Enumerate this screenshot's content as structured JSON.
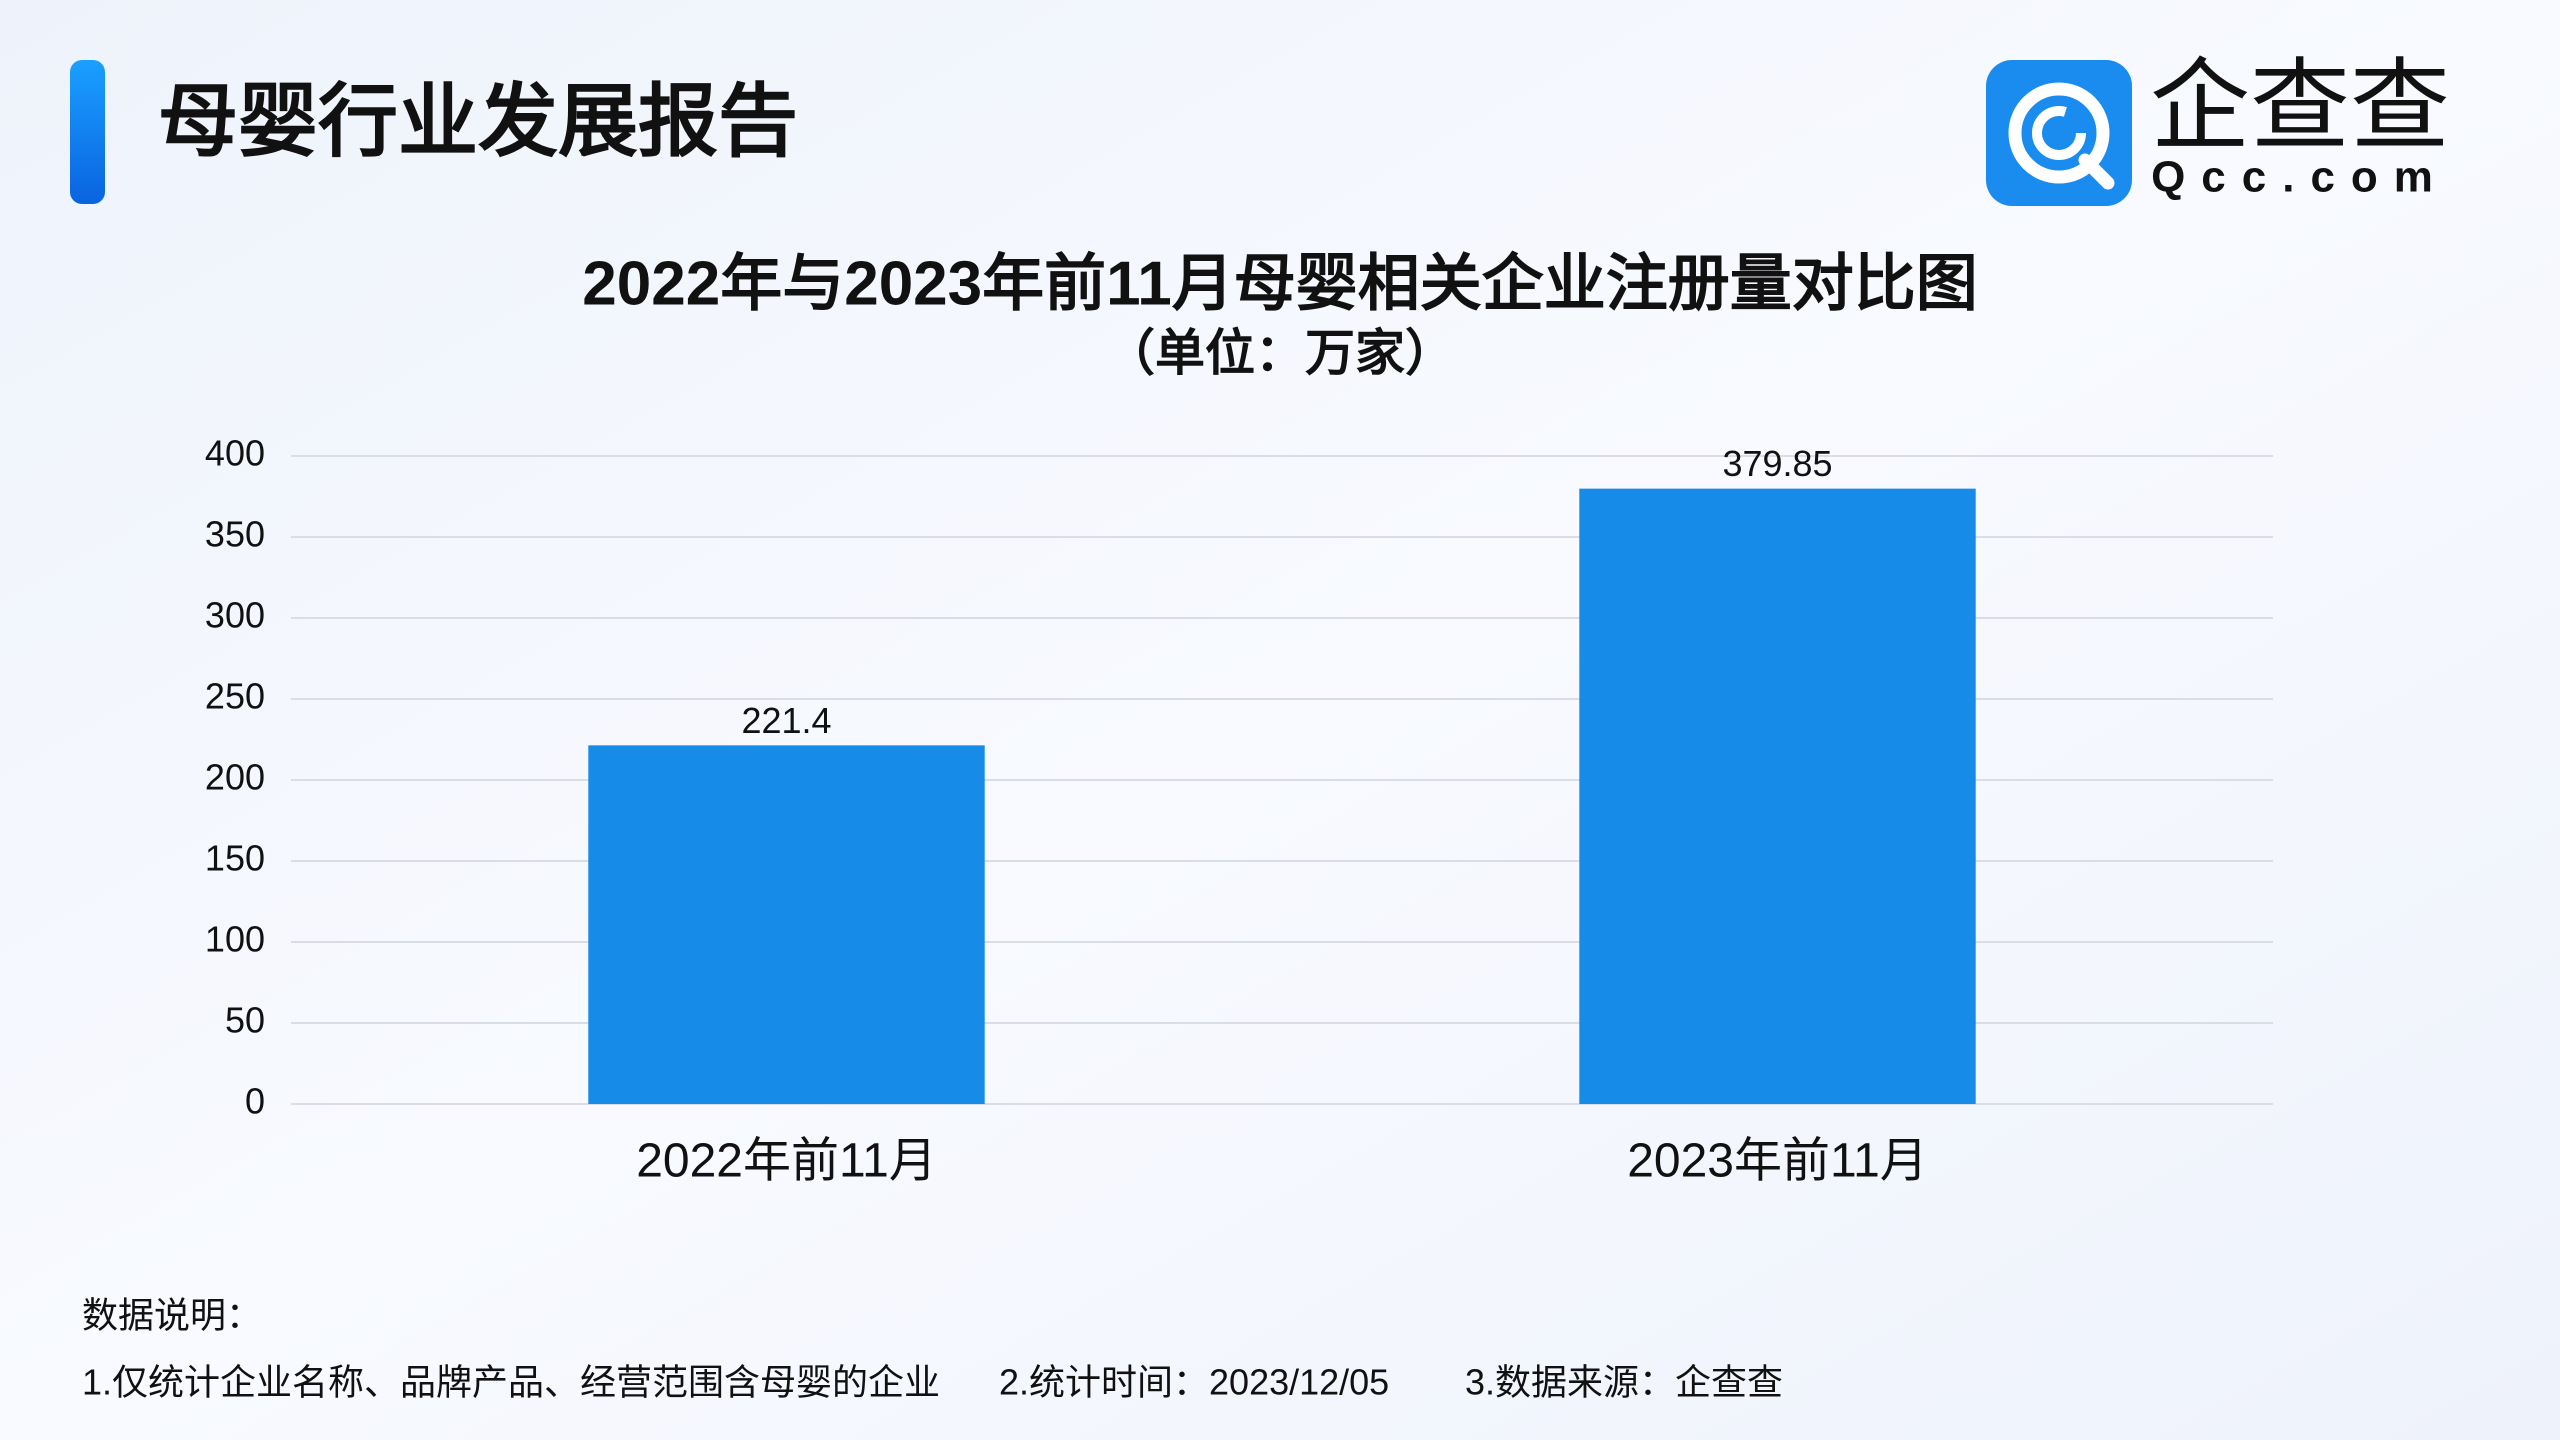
{
  "header": {
    "title": "母婴行业发展报告",
    "logo": "企查查",
    "logo_sub": "Qcc.com"
  },
  "chart_data": {
    "type": "bar",
    "title": "2022年与2023年前11月母婴相关企业注册量对比图",
    "subtitle": "（单位：万家）",
    "categories": [
      "2022年前11月",
      "2023年前11月"
    ],
    "values": [
      221.4,
      379.85
    ],
    "color": "#178be8",
    "ylim": [
      0,
      400
    ],
    "yticks": [
      0,
      50,
      100,
      150,
      200,
      250,
      300,
      350,
      400
    ],
    "grid": true
  },
  "footnote": {
    "heading": "数据说明：",
    "items": [
      "1.仅统计企业名称、品牌产品、经营范围含母婴的企业",
      "2.统计时间：2023/12/05",
      "3.数据来源：企查查"
    ]
  }
}
